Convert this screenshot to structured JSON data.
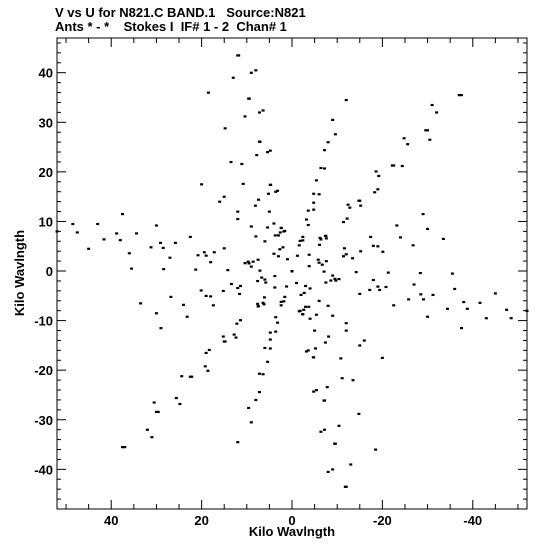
{
  "header": {
    "title_line1": "V vs U for N821.C BAND.1   Source:N821",
    "title_line2": "Ants * - *    Stokes I  IF# 1 - 2  Chan# 1"
  },
  "chart_data": {
    "type": "scatter",
    "xlabel": "Kilo Wavlngth",
    "ylabel": "Kilo Wavlngth",
    "xlim": [
      52,
      -52
    ],
    "ylim": [
      -48,
      47
    ],
    "x_ticks": [
      40,
      20,
      0,
      -20,
      -40
    ],
    "x_tick_labels": [
      "40",
      "20",
      "0",
      "-20",
      "-40"
    ],
    "y_ticks": [
      40,
      30,
      20,
      10,
      0,
      -10,
      -20,
      -30,
      -40
    ],
    "y_tick_labels": [
      "40",
      "30",
      "20",
      "10",
      "0",
      "-10",
      "-20",
      "-30",
      "-40"
    ],
    "grid": false,
    "marker_color": "#000000",
    "baselines": [
      {
        "u": 11.8,
        "v": 43.5
      },
      {
        "u": 8.0,
        "v": 40.5
      },
      {
        "u": -9.0,
        "v": 30.5
      },
      {
        "u": -31.0,
        "v": 33.5
      },
      {
        "u": -37.5,
        "v": 35.5
      },
      {
        "u": -19.0,
        "v": 16.5
      },
      {
        "u": 13.5,
        "v": 22.0
      },
      {
        "u": 20.0,
        "v": 17.5
      },
      {
        "u": 47.5,
        "v": 7.8
      },
      {
        "u": 43.0,
        "v": 9.5
      },
      {
        "u": 37.5,
        "v": 11.5
      },
      {
        "u": 33.5,
        "v": -6.5
      },
      {
        "u": -30.0,
        "v": 8.5
      },
      {
        "u": -35.5,
        "v": -0.5
      },
      {
        "u": -45.0,
        "v": -4.5
      },
      {
        "u": -48.5,
        "v": -9.5
      },
      {
        "u": -52.0,
        "v": -8.0
      },
      {
        "u": -15.0,
        "v": -15.0
      },
      {
        "u": 29.0,
        "v": -11.5
      },
      {
        "u": 19.0,
        "v": -5.0
      },
      {
        "u": 6.0,
        "v": -15.5
      },
      {
        "u": 8.0,
        "v": -26.0
      },
      {
        "u": 12.0,
        "v": -34.5
      },
      {
        "u": 37.0,
        "v": -35.5
      },
      {
        "u": 32.0,
        "v": -32.0
      },
      {
        "u": 30.5,
        "v": -26.5
      },
      {
        "u": -9.0,
        "v": -40.0
      },
      {
        "u": -12.0,
        "v": -43.5
      },
      {
        "u": -13.0,
        "v": -39.0
      },
      {
        "u": -18.5,
        "v": -36.0
      },
      {
        "u": -5.0,
        "v": -12.0
      },
      {
        "u": 0.0,
        "v": 0.0
      }
    ]
  }
}
